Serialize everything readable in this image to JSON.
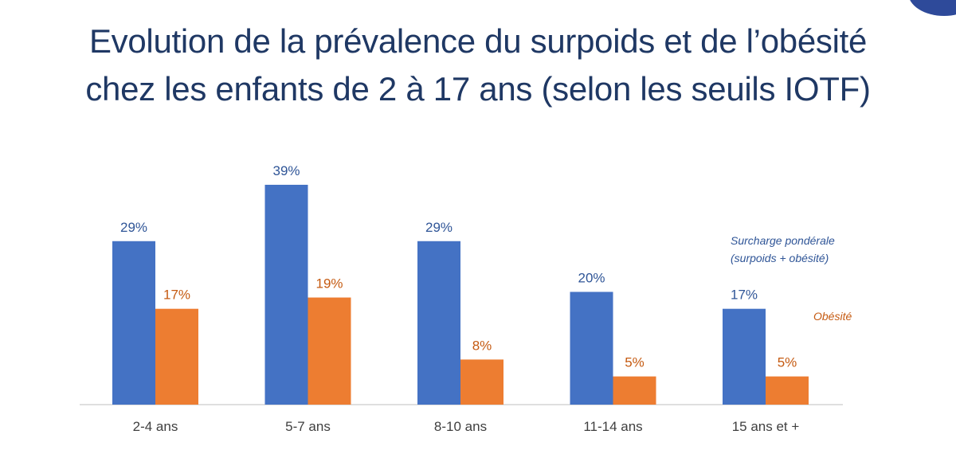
{
  "title": {
    "line1": "Evolution de la prévalence du surpoids et de l’obésité",
    "line2": "chez les enfants de 2 à 17 ans (selon les seuils IOTF)"
  },
  "colors": {
    "title": "#1f3864",
    "series1": "#4472c4",
    "series2": "#ed7d31",
    "label1": "#2f5597",
    "label2": "#c55a11",
    "axis": "#bfbfbf",
    "tick": "#404040"
  },
  "legend": {
    "series1_line1": "Surcharge pondérale",
    "series1_line2": "(surpoids + obésité)",
    "series2": "Obésité"
  },
  "chart_data": {
    "type": "bar",
    "categories": [
      "2-4 ans",
      "5-7 ans",
      "8-10 ans",
      "11-14 ans",
      "15 ans et +"
    ],
    "series": [
      {
        "name": "Surcharge pondérale (surpoids + obésité)",
        "values": [
          29,
          39,
          29,
          20,
          17
        ],
        "labels": [
          "29%",
          "39%",
          "29%",
          "20%",
          "17%"
        ]
      },
      {
        "name": "Obésité",
        "values": [
          17,
          19,
          8,
          5,
          5
        ],
        "labels": [
          "17%",
          "19%",
          "8%",
          "5%",
          "5%"
        ]
      }
    ],
    "ylim": [
      0,
      42
    ],
    "grid": false,
    "legend_position": "right"
  }
}
